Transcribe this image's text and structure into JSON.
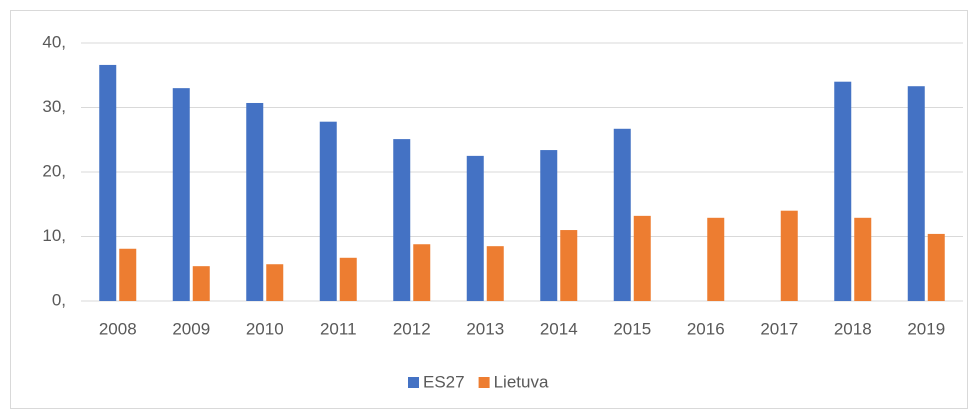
{
  "chart_data": {
    "type": "bar",
    "categories": [
      "2008",
      "2009",
      "2010",
      "2011",
      "2012",
      "2013",
      "2014",
      "2015",
      "2016",
      "2017",
      "2018",
      "2019"
    ],
    "series": [
      {
        "name": "ES27",
        "color": "#4472c4",
        "values": [
          36.6,
          33.0,
          30.7,
          27.8,
          25.1,
          22.5,
          23.4,
          26.7,
          null,
          null,
          34.0,
          33.3
        ]
      },
      {
        "name": "Lietuva",
        "color": "#ed7d31",
        "values": [
          8.1,
          5.4,
          5.7,
          6.7,
          8.8,
          8.5,
          11.0,
          13.2,
          12.9,
          14.0,
          12.9,
          10.4
        ]
      }
    ],
    "ylim": [
      0,
      40
    ],
    "yticks": [
      {
        "value": 0,
        "label": "0,"
      },
      {
        "value": 10,
        "label": "10,"
      },
      {
        "value": 20,
        "label": "20,"
      },
      {
        "value": 30,
        "label": "30,"
      },
      {
        "value": 40,
        "label": "40,"
      }
    ],
    "grid": true,
    "legend": "bottom"
  }
}
